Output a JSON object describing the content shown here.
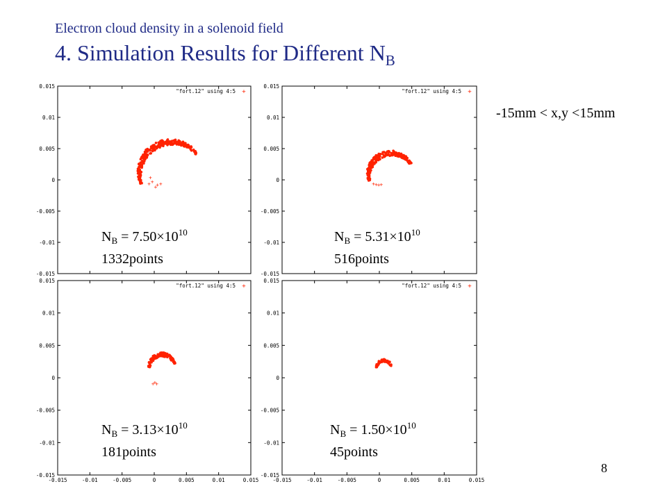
{
  "header": {
    "subtitle": "Electron cloud density in a solenoid field",
    "title_main": "4. Simulation Results for Different N",
    "title_sub": "B"
  },
  "range_note": "-15mm < x,y <15mm",
  "page_number": "8",
  "chart_data": [
    {
      "type": "scatter",
      "legend": "\"fort.12\" using 4:5",
      "legend_position": "top-right",
      "xlim": [
        -0.015,
        0.015
      ],
      "ylim": [
        -0.015,
        0.015
      ],
      "x_ticks": [
        "-0.015",
        "-0.01",
        "-0.005",
        "0",
        "0.005",
        "0.01",
        "0.015"
      ],
      "y_ticks": [
        "0.015",
        "0.01",
        "0.005",
        "0",
        "-0.005",
        "-0.01",
        "-0.015"
      ],
      "marker_color": "#ff2200",
      "caption": {
        "symbol": "N",
        "sub": "B",
        "value": " = 7.50×10",
        "exp": "10",
        "points": "1332points"
      },
      "cloud": {
        "cx": 0.0025,
        "cy": 0.0014,
        "r_outer": 0.0051,
        "r_inner": 0.0041,
        "a0": 0.6,
        "a1": 3.55
      },
      "strays": [
        [
          -0.0003,
          -0.0003
        ],
        [
          -0.0008,
          -0.0006
        ],
        [
          0.0005,
          -0.0008
        ],
        [
          0.001,
          -0.0006
        ],
        [
          -0.0006,
          0.0004
        ],
        [
          0.0002,
          -0.0011
        ]
      ]
    },
    {
      "type": "scatter",
      "legend": "\"fort.12\" using 4:5",
      "legend_position": "top-right",
      "xlim": [
        -0.015,
        0.015
      ],
      "ylim": [
        -0.015,
        0.015
      ],
      "x_ticks": [
        "-0.015",
        "-0.01",
        "-0.005",
        "0",
        "0.005",
        "0.01",
        "0.015"
      ],
      "y_ticks": [
        "0.015",
        "0.01",
        "0.005",
        "0",
        "-0.005",
        "-0.01",
        "-0.015"
      ],
      "marker_color": "#ff2200",
      "caption": {
        "symbol": "N",
        "sub": "B",
        "value": " = 5.31×10",
        "exp": "10",
        "points": "516points"
      },
      "cloud": {
        "cx": 0.0017,
        "cy": 0.0011,
        "r_outer": 0.0036,
        "r_inner": 0.0027,
        "a0": 0.45,
        "a1": 3.5
      },
      "strays": [
        [
          -0.0005,
          -0.0007
        ],
        [
          -0.0001,
          -0.0008
        ],
        [
          0.0003,
          -0.0007
        ],
        [
          -0.0009,
          -0.0006
        ]
      ]
    },
    {
      "type": "scatter",
      "legend": "\"fort.12\" using 4:5",
      "legend_position": "top-right",
      "xlim": [
        -0.015,
        0.015
      ],
      "ylim": [
        -0.015,
        0.015
      ],
      "x_ticks": [
        "-0.015",
        "-0.01",
        "-0.005",
        "0",
        "0.005",
        "0.01",
        "0.015"
      ],
      "y_ticks": [
        "0.015",
        "0.01",
        "0.005",
        "0",
        "-0.005",
        "-0.01",
        "-0.015"
      ],
      "marker_color": "#ff2200",
      "caption": {
        "symbol": "N",
        "sub": "B",
        "value": " = 3.13×10",
        "exp": "10",
        "points": "181points"
      },
      "cloud": {
        "cx": 0.0012,
        "cy": 0.0018,
        "r_outer": 0.0021,
        "r_inner": 0.0014,
        "a0": 0.2,
        "a1": 3.3
      },
      "strays": [
        [
          -0.0002,
          -0.0009
        ],
        [
          0.0004,
          -0.0009
        ],
        [
          0.0001,
          -0.0007
        ]
      ]
    },
    {
      "type": "scatter",
      "legend": "\"fort.12\" using 4:5",
      "legend_position": "top-right",
      "xlim": [
        -0.015,
        0.015
      ],
      "ylim": [
        -0.015,
        0.015
      ],
      "x_ticks": [
        "-0.015",
        "-0.01",
        "-0.005",
        "0",
        "0.005",
        "0.01",
        "0.015"
      ],
      "y_ticks": [
        "0.015",
        "0.01",
        "0.005",
        "0",
        "-0.005",
        "-0.01",
        "-0.015"
      ],
      "marker_color": "#ff2200",
      "caption": {
        "symbol": "N",
        "sub": "B",
        "value": " = 1.50×10",
        "exp": "10",
        "points": "45points"
      },
      "cloud": {
        "cx": 0.0007,
        "cy": 0.0017,
        "r_outer": 0.0012,
        "r_inner": 0.0007,
        "a0": 0.1,
        "a1": 3.2
      },
      "strays": []
    }
  ]
}
